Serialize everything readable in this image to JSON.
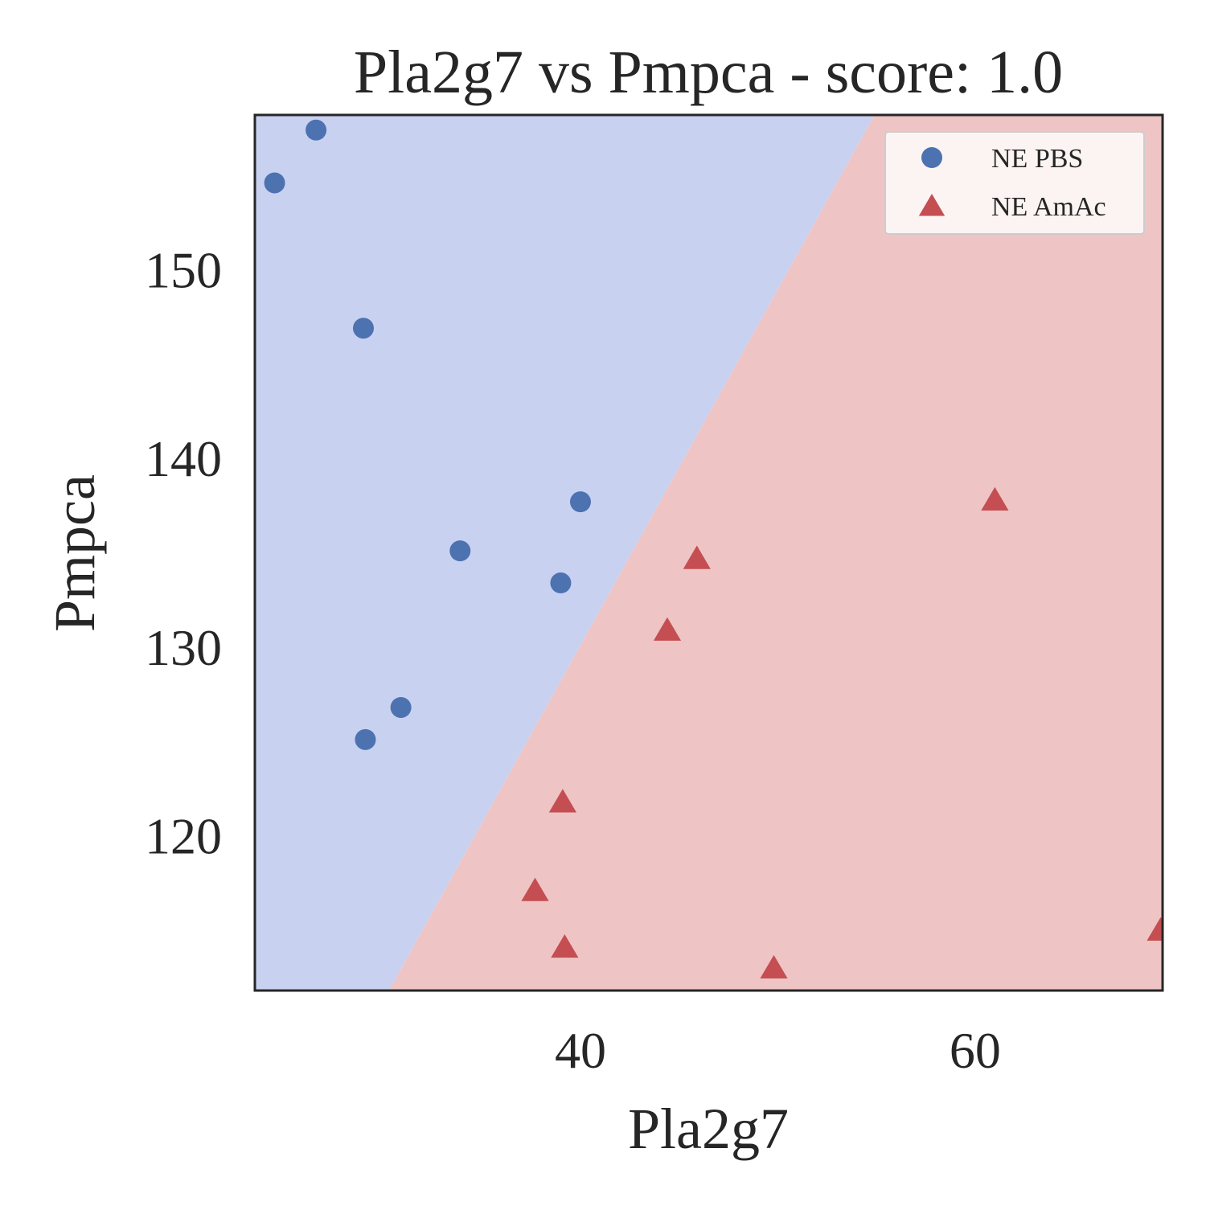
{
  "chart_data": {
    "type": "scatter",
    "title": "Pla2g7 vs Pmpca - score: 1.0",
    "xlabel": "Pla2g7",
    "ylabel": "Pmpca",
    "xlim": [
      23.5,
      69.5
    ],
    "ylim": [
      111.8,
      158.2
    ],
    "xticks": [
      40,
      60
    ],
    "yticks": [
      120,
      130,
      140,
      150
    ],
    "grid": false,
    "legend_position": "top-right",
    "decision_boundary": {
      "points": [
        [
          30.3,
          111.8
        ],
        [
          54.9,
          158.2
        ]
      ],
      "left_region_color": "#c9d1f1",
      "right_region_color": "#eec5c4"
    },
    "series": [
      {
        "name": "NE PBS",
        "marker": "circle",
        "color": "#4c72b0",
        "points": [
          [
            24.5,
            154.6
          ],
          [
            26.6,
            157.4
          ],
          [
            29.0,
            146.9
          ],
          [
            29.1,
            125.1
          ],
          [
            30.9,
            126.8
          ],
          [
            33.9,
            135.1
          ],
          [
            39.0,
            133.4
          ],
          [
            40.0,
            137.7
          ]
        ]
      },
      {
        "name": "NE AmAc",
        "marker": "triangle",
        "color": "#c44e52",
        "points": [
          [
            37.7,
            117.1
          ],
          [
            39.1,
            121.8
          ],
          [
            39.2,
            114.1
          ],
          [
            44.4,
            130.9
          ],
          [
            45.9,
            134.7
          ],
          [
            49.8,
            113.0
          ],
          [
            61.0,
            137.8
          ],
          [
            69.4,
            115.0
          ]
        ]
      }
    ]
  }
}
